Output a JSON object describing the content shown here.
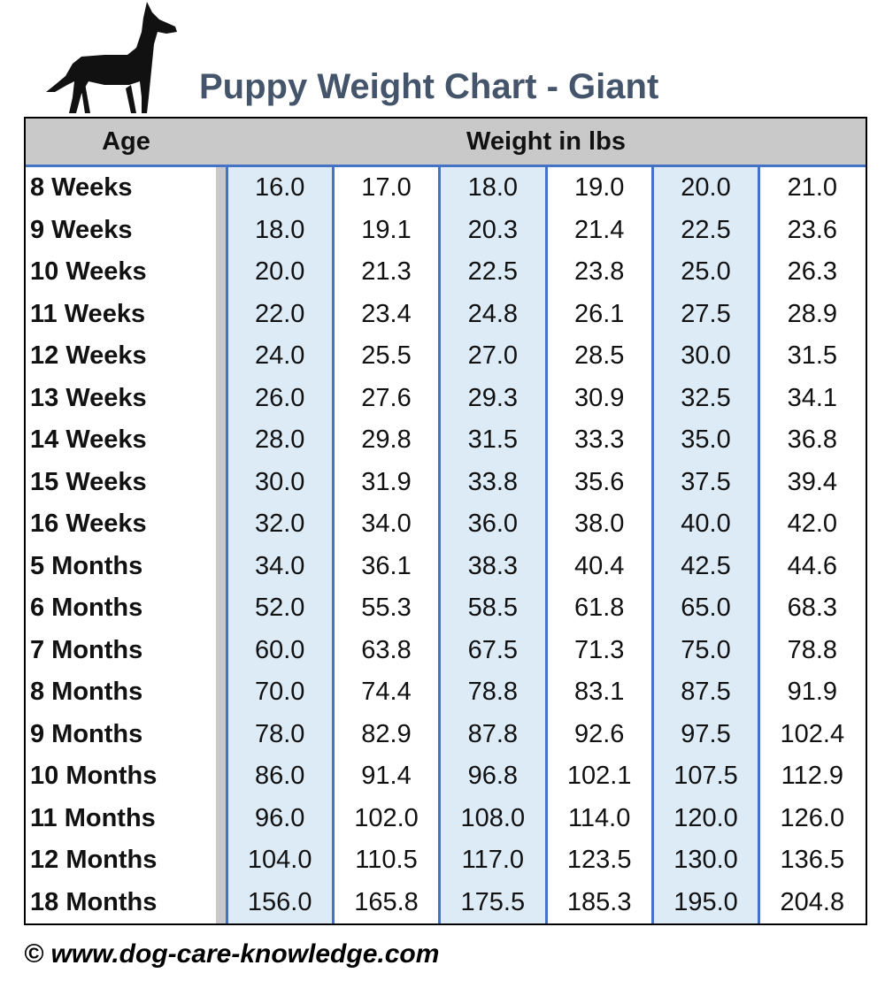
{
  "header": {
    "title": "Puppy Weight Chart - Giant"
  },
  "table": {
    "columns": [
      "Age",
      "Weight in lbs"
    ],
    "rows": [
      [
        "8 Weeks",
        "16.0",
        "17.0",
        "18.0",
        "19.0",
        "20.0",
        "21.0"
      ],
      [
        "9 Weeks",
        "18.0",
        "19.1",
        "20.3",
        "21.4",
        "22.5",
        "23.6"
      ],
      [
        "10 Weeks",
        "20.0",
        "21.3",
        "22.5",
        "23.8",
        "25.0",
        "26.3"
      ],
      [
        "11 Weeks",
        "22.0",
        "23.4",
        "24.8",
        "26.1",
        "27.5",
        "28.9"
      ],
      [
        "12 Weeks",
        "24.0",
        "25.5",
        "27.0",
        "28.5",
        "30.0",
        "31.5"
      ],
      [
        "13 Weeks",
        "26.0",
        "27.6",
        "29.3",
        "30.9",
        "32.5",
        "34.1"
      ],
      [
        "14 Weeks",
        "28.0",
        "29.8",
        "31.5",
        "33.3",
        "35.0",
        "36.8"
      ],
      [
        "15 Weeks",
        "30.0",
        "31.9",
        "33.8",
        "35.6",
        "37.5",
        "39.4"
      ],
      [
        "16 Weeks",
        "32.0",
        "34.0",
        "36.0",
        "38.0",
        "40.0",
        "42.0"
      ],
      [
        "5 Months",
        "34.0",
        "36.1",
        "38.3",
        "40.4",
        "42.5",
        "44.6"
      ],
      [
        "6 Months",
        "52.0",
        "55.3",
        "58.5",
        "61.8",
        "65.0",
        "68.3"
      ],
      [
        "7 Months",
        "60.0",
        "63.8",
        "67.5",
        "71.3",
        "75.0",
        "78.8"
      ],
      [
        "8 Months",
        "70.0",
        "74.4",
        "78.8",
        "83.1",
        "87.5",
        "91.9"
      ],
      [
        "9 Months",
        "78.0",
        "82.9",
        "87.8",
        "92.6",
        "97.5",
        "102.4"
      ],
      [
        "10 Months",
        "86.0",
        "91.4",
        "96.8",
        "102.1",
        "107.5",
        "112.9"
      ],
      [
        "11 Months",
        "96.0",
        "102.0",
        "108.0",
        "114.0",
        "120.0",
        "126.0"
      ],
      [
        "12 Months",
        "104.0",
        "110.5",
        "117.0",
        "123.5",
        "130.0",
        "136.5"
      ],
      [
        "18 Months",
        "156.0",
        "165.8",
        "175.5",
        "185.3",
        "195.0",
        "204.8"
      ]
    ]
  },
  "footer": {
    "text": "© www.dog-care-knowledge.com"
  }
}
